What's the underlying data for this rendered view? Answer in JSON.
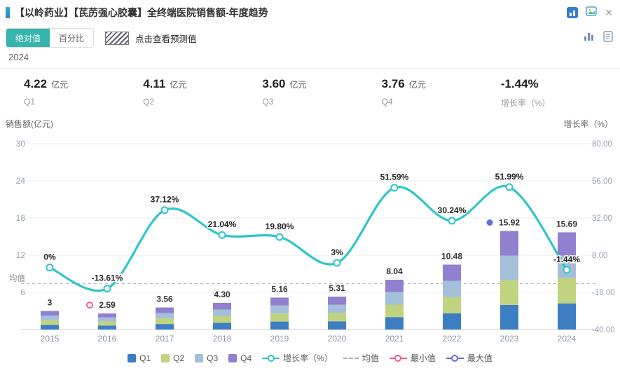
{
  "header": {
    "title": "【以岭药业】【芪苈强心胶囊】全终端医院销售额-年度趋势"
  },
  "toolbar": {
    "absolute_label": "绝对值",
    "percent_label": "百分比",
    "forecast_hint": "点击查看预测值"
  },
  "year": "2024",
  "stats": {
    "items": [
      {
        "value": "4.22",
        "unit": "亿元",
        "label": "Q1"
      },
      {
        "value": "4.11",
        "unit": "亿元",
        "label": "Q2"
      },
      {
        "value": "3.60",
        "unit": "亿元",
        "label": "Q3"
      },
      {
        "value": "3.76",
        "unit": "亿元",
        "label": "Q4"
      },
      {
        "value": "-1.44%",
        "unit": "",
        "label": "增长率（%）"
      }
    ]
  },
  "chart_data": {
    "type": "bar",
    "subtype": "stacked-bars-with-growth-line",
    "categories": [
      "2015",
      "2016",
      "2017",
      "2018",
      "2019",
      "2020",
      "2021",
      "2022",
      "2023",
      "2024"
    ],
    "series": [
      {
        "name": "Q1",
        "values": [
          0.75,
          0.65,
          0.89,
          1.08,
          1.29,
          1.33,
          2.01,
          2.62,
          3.98,
          4.22
        ]
      },
      {
        "name": "Q2",
        "values": [
          0.75,
          0.65,
          0.89,
          1.08,
          1.29,
          1.33,
          2.01,
          2.62,
          3.98,
          4.11
        ]
      },
      {
        "name": "Q3",
        "values": [
          0.75,
          0.65,
          0.89,
          1.07,
          1.29,
          1.33,
          2.01,
          2.62,
          3.98,
          3.6
        ]
      },
      {
        "name": "Q4",
        "values": [
          0.75,
          0.64,
          0.89,
          1.07,
          1.29,
          1.32,
          2.01,
          2.62,
          3.98,
          3.76
        ]
      }
    ],
    "totals": [
      3,
      2.59,
      3.56,
      4.3,
      5.16,
      5.31,
      8.04,
      10.48,
      15.92,
      15.69
    ],
    "total_labels": [
      "3",
      "2.59",
      "3.56",
      "4.30",
      "5.16",
      "5.31",
      "8.04",
      "10.48",
      "15.92",
      "15.69"
    ],
    "growth_rate": {
      "name": "增长率（%）",
      "values": [
        0,
        -13.61,
        37.12,
        21.04,
        19.8,
        3,
        51.59,
        30.24,
        51.99,
        -1.44
      ],
      "labels": [
        "0%",
        "-13.61%",
        "37.12%",
        "21.04%",
        "19.80%",
        "3%",
        "51.59%",
        "30.24%",
        "51.99%",
        "-1.44%"
      ]
    },
    "left_axis": {
      "title": "销售额(亿元)",
      "ticks": [
        30,
        24,
        18,
        12,
        6
      ],
      "range": [
        0,
        30
      ]
    },
    "right_axis": {
      "title": "增长率（%）",
      "ticks": [
        "80.00",
        "56.00",
        "32.00",
        "8.00",
        "-16.00",
        "-40.00"
      ],
      "range": [
        -40,
        80
      ]
    },
    "mean_line": {
      "label": "均值",
      "value": 7.41
    },
    "min_marker": {
      "label": "最小值",
      "year": "2016",
      "index": 1
    },
    "max_marker": {
      "label": "最大值",
      "year": "2023",
      "index": 8
    }
  },
  "legend": {
    "items": [
      {
        "label": "Q1",
        "type": "square",
        "color": "#3d7dc2"
      },
      {
        "label": "Q2",
        "type": "square",
        "color": "#c0d37f"
      },
      {
        "label": "Q3",
        "type": "square",
        "color": "#a4c0d8"
      },
      {
        "label": "Q4",
        "type": "square",
        "color": "#9180d0"
      },
      {
        "label": "增长率（%）",
        "type": "line-circle",
        "color": "#2fc6c8"
      },
      {
        "label": "均值",
        "type": "dashed",
        "color": "#b0b0b0"
      },
      {
        "label": "最小值",
        "type": "line-circle",
        "color": "#ee5f8f"
      },
      {
        "label": "最大值",
        "type": "line-circle",
        "color": "#5f6fd4"
      }
    ]
  },
  "colors": {
    "series": [
      "#3d7dc2",
      "#c0d37f",
      "#a4c0d8",
      "#9180d0"
    ],
    "line": "#2fc6c8",
    "accent": "#35b5ab",
    "min": "#ee5f8f",
    "max": "#5f6fd4",
    "grid": "#ebedf2",
    "axis_line": "#ccd2dc",
    "axis_text": "#98a2b3",
    "label_text": "#333333"
  }
}
